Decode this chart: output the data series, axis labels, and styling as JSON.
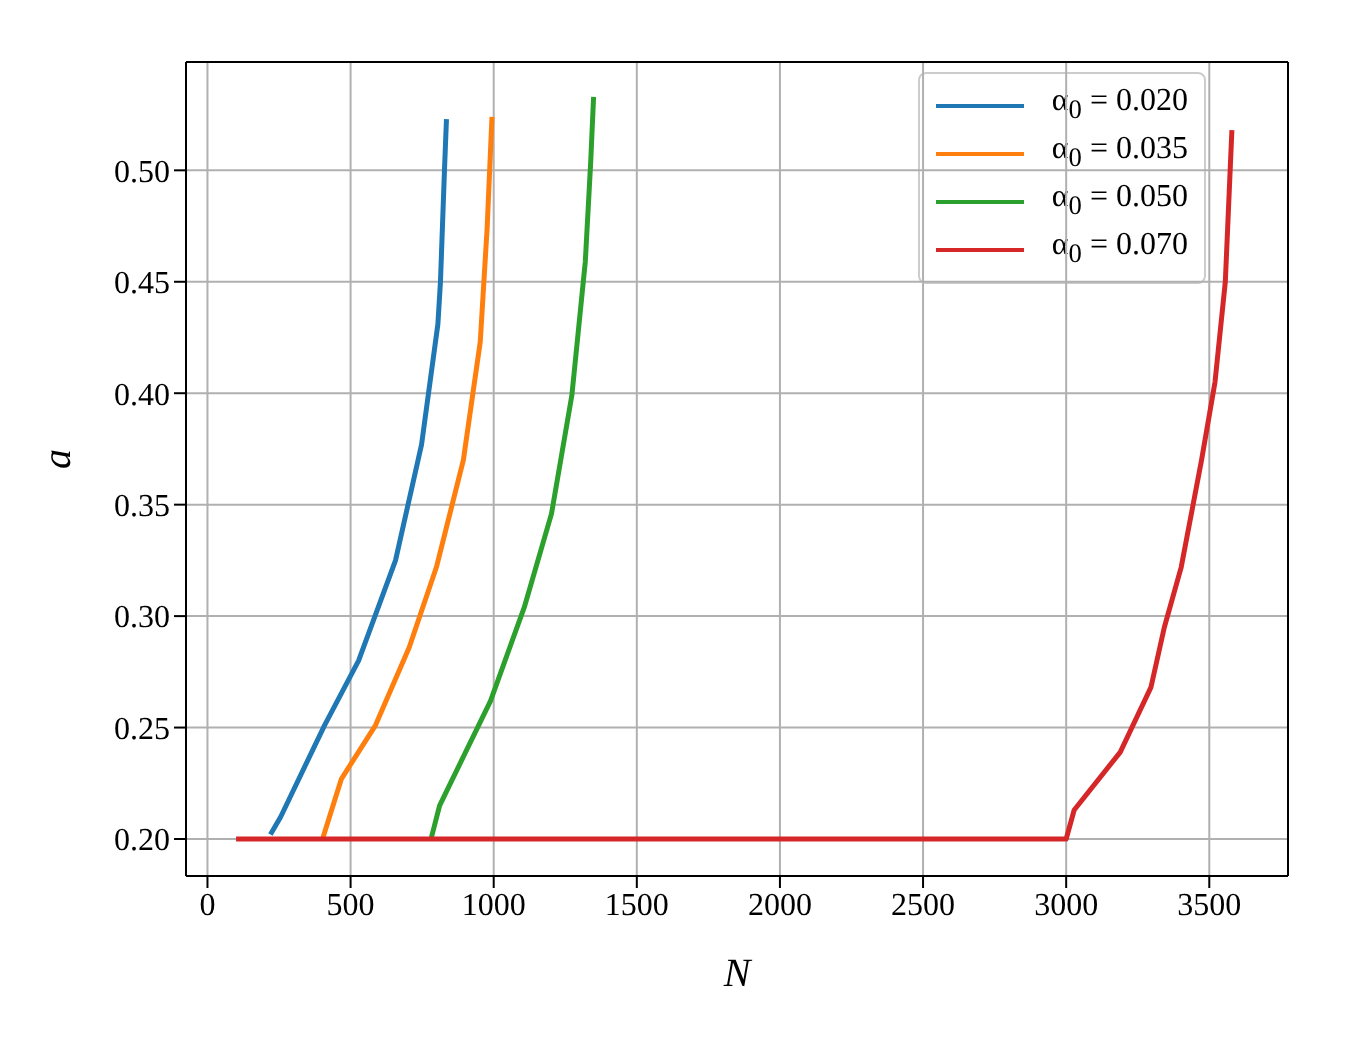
{
  "chart_data": {
    "type": "line",
    "xlabel": "N",
    "ylabel": "a",
    "xlim": [
      -75,
      3775
    ],
    "xticks": [
      0,
      500,
      1000,
      1500,
      2000,
      2500,
      3000,
      3500
    ],
    "ylim": [
      0.1834,
      0.5486
    ],
    "yticks": [
      {
        "value": 0.2,
        "label": "0.20"
      },
      {
        "value": 0.25,
        "label": "0.25"
      },
      {
        "value": 0.3,
        "label": "0.30"
      },
      {
        "value": 0.35,
        "label": "0.35"
      },
      {
        "value": 0.4,
        "label": "0.40"
      },
      {
        "value": 0.45,
        "label": "0.45"
      },
      {
        "value": 0.5,
        "label": "0.50"
      }
    ],
    "grid": true,
    "legend": "top right",
    "marker": "none",
    "line_style": "solid",
    "series": [
      {
        "name": "α$_{0}$ = 0.020",
        "color": "#1f77b4",
        "x": [
          220,
          256,
          409,
          528,
          657,
          748,
          805,
          814,
          828,
          835
        ],
        "values": [
          0.202,
          0.21,
          0.251,
          0.28,
          0.325,
          0.377,
          0.431,
          0.45,
          0.5,
          0.523
        ]
      },
      {
        "name": "α$_{0}$ = 0.035",
        "color": "#ff7f0e",
        "x": [
          402,
          468,
          587,
          705,
          800,
          894,
          953,
          977,
          994
        ],
        "values": [
          0.2,
          0.227,
          0.251,
          0.286,
          0.322,
          0.37,
          0.423,
          0.474,
          0.524
        ]
      },
      {
        "name": "α$_{0}$ = 0.050",
        "color": "#2ca02c",
        "x": [
          781,
          811,
          989,
          1107,
          1202,
          1273,
          1320,
          1339,
          1349
        ],
        "values": [
          0.2,
          0.215,
          0.262,
          0.304,
          0.346,
          0.399,
          0.459,
          0.504,
          0.533
        ]
      },
      {
        "name": "α$_{0}$ = 0.070",
        "color": "#d62728",
        "x": [
          100,
          3000,
          3028,
          3189,
          3296,
          3343,
          3402,
          3473,
          3520,
          3556,
          3579
        ],
        "values": [
          0.2,
          0.2,
          0.213,
          0.239,
          0.268,
          0.295,
          0.322,
          0.37,
          0.405,
          0.45,
          0.518
        ]
      }
    ]
  }
}
